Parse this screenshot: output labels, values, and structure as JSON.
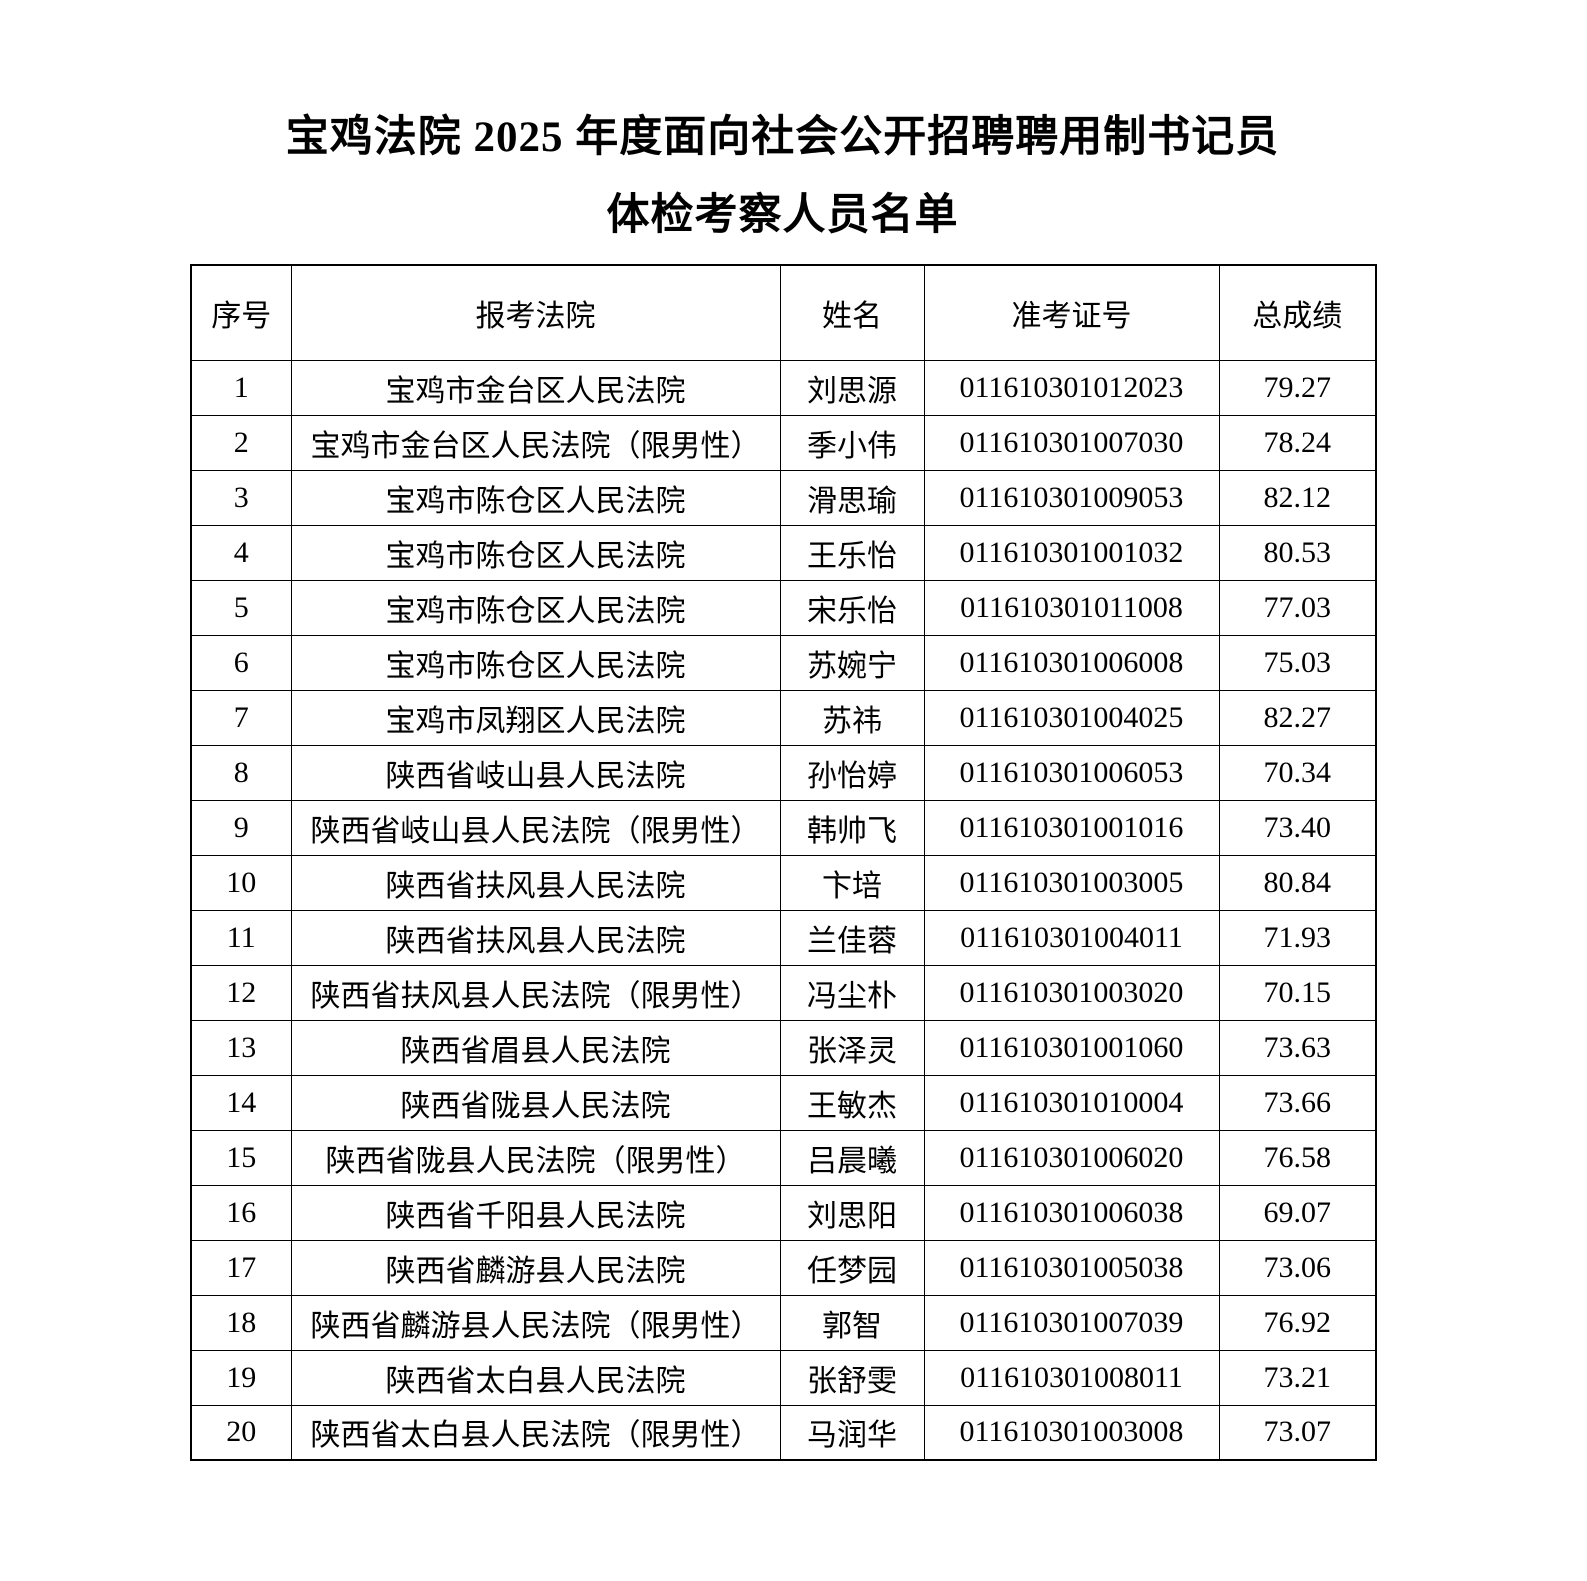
{
  "document": {
    "title_line1": "宝鸡法院 2025 年度面向社会公开招聘聘用制书记员",
    "title_line2": "体检考察人员名单"
  },
  "table": {
    "columns": [
      "no",
      "court",
      "name",
      "ticket",
      "score"
    ],
    "headers": [
      "序号",
      "报考法院",
      "姓名",
      "准考证号",
      "总成绩"
    ],
    "rows": [
      {
        "no": "1",
        "court": "宝鸡市金台区人民法院",
        "name": "刘思源",
        "ticket": "011610301012023",
        "score": "79.27"
      },
      {
        "no": "2",
        "court": "宝鸡市金台区人民法院（限男性）",
        "name": "季小伟",
        "ticket": "011610301007030",
        "score": "78.24"
      },
      {
        "no": "3",
        "court": "宝鸡市陈仓区人民法院",
        "name": "滑思瑜",
        "ticket": "011610301009053",
        "score": "82.12"
      },
      {
        "no": "4",
        "court": "宝鸡市陈仓区人民法院",
        "name": "王乐怡",
        "ticket": "011610301001032",
        "score": "80.53"
      },
      {
        "no": "5",
        "court": "宝鸡市陈仓区人民法院",
        "name": "宋乐怡",
        "ticket": "011610301011008",
        "score": "77.03"
      },
      {
        "no": "6",
        "court": "宝鸡市陈仓区人民法院",
        "name": "苏婉宁",
        "ticket": "011610301006008",
        "score": "75.03"
      },
      {
        "no": "7",
        "court": "宝鸡市凤翔区人民法院",
        "name": "苏祎",
        "ticket": "011610301004025",
        "score": "82.27"
      },
      {
        "no": "8",
        "court": "陕西省岐山县人民法院",
        "name": "孙怡婷",
        "ticket": "011610301006053",
        "score": "70.34"
      },
      {
        "no": "9",
        "court": "陕西省岐山县人民法院（限男性）",
        "name": "韩帅飞",
        "ticket": "011610301001016",
        "score": "73.40"
      },
      {
        "no": "10",
        "court": "陕西省扶风县人民法院",
        "name": "卞培",
        "ticket": "011610301003005",
        "score": "80.84"
      },
      {
        "no": "11",
        "court": "陕西省扶风县人民法院",
        "name": "兰佳蓉",
        "ticket": "011610301004011",
        "score": "71.93"
      },
      {
        "no": "12",
        "court": "陕西省扶风县人民法院（限男性）",
        "name": "冯尘朴",
        "ticket": "011610301003020",
        "score": "70.15"
      },
      {
        "no": "13",
        "court": "陕西省眉县人民法院",
        "name": "张泽灵",
        "ticket": "011610301001060",
        "score": "73.63"
      },
      {
        "no": "14",
        "court": "陕西省陇县人民法院",
        "name": "王敏杰",
        "ticket": "011610301010004",
        "score": "73.66"
      },
      {
        "no": "15",
        "court": "陕西省陇县人民法院（限男性）",
        "name": "吕晨曦",
        "ticket": "011610301006020",
        "score": "76.58"
      },
      {
        "no": "16",
        "court": "陕西省千阳县人民法院",
        "name": "刘思阳",
        "ticket": "011610301006038",
        "score": "69.07"
      },
      {
        "no": "17",
        "court": "陕西省麟游县人民法院",
        "name": "任梦园",
        "ticket": "011610301005038",
        "score": "73.06"
      },
      {
        "no": "18",
        "court": "陕西省麟游县人民法院（限男性）",
        "name": "郭智",
        "ticket": "011610301007039",
        "score": "76.92"
      },
      {
        "no": "19",
        "court": "陕西省太白县人民法院",
        "name": "张舒雯",
        "ticket": "011610301008011",
        "score": "73.21"
      },
      {
        "no": "20",
        "court": "陕西省太白县人民法院（限男性）",
        "name": "马润华",
        "ticket": "011610301003008",
        "score": "73.07"
      }
    ]
  }
}
